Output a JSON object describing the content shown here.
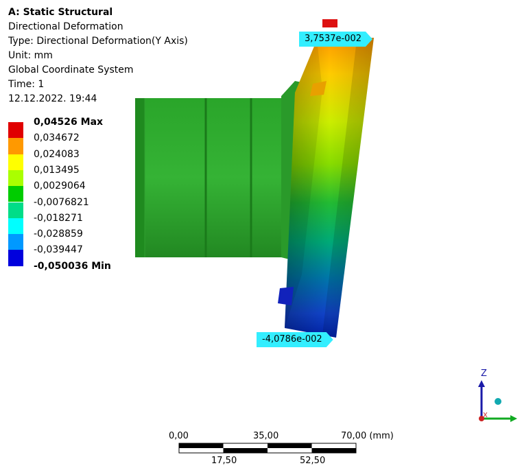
{
  "info": {
    "title": "A: Static Structural",
    "result_name": "Directional Deformation",
    "type_line": "Type: Directional Deformation(Y Axis)",
    "unit_line": "Unit: mm",
    "coord_line": "Global Coordinate System",
    "time_line": "Time: 1",
    "date_line": "12.12.2022. 19:44"
  },
  "legend": {
    "colors": [
      "#e00000",
      "#ff9900",
      "#ffff00",
      "#aaff00",
      "#00cc00",
      "#00dd88",
      "#00ffff",
      "#0099ff",
      "#0000dd"
    ],
    "labels": [
      "0,04526 Max",
      "0,034672",
      "0,024083",
      "0,013495",
      "0,0029064",
      "-0,0076821",
      "-0,018271",
      "-0,028859",
      "-0,039447",
      "-0,050036 Min"
    ]
  },
  "probes": {
    "max_label": "3,7537e-002",
    "min_label": "-4,0786e-002",
    "color": "#33eeff"
  },
  "scale_bar": {
    "top_labels": [
      "0,00",
      "35,00",
      "70,00 (mm)"
    ],
    "bottom_labels": [
      "17,50",
      "52,50"
    ]
  },
  "triad": {
    "z_label": "Z",
    "x_label": "X",
    "z_color": "#1a1aa8",
    "y_color": "#11aa22",
    "x_color": "#cc2222"
  }
}
